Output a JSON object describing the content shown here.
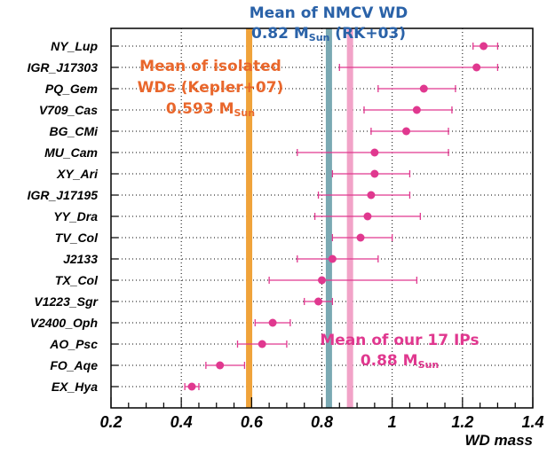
{
  "chart_data": {
    "type": "scatter",
    "title": "",
    "xlabel": "WD mass",
    "ylabel": "",
    "xlim": [
      0.2,
      1.4
    ],
    "x_ticks": [
      0.2,
      0.4,
      0.6,
      0.8,
      1,
      1.2,
      1.4
    ],
    "x_tick_labels": [
      "0.2",
      "0.4",
      "0.6",
      "0.8",
      "1",
      "1.2",
      "1.4"
    ],
    "grid": true,
    "categories": [
      "NY_Lup",
      "IGR_J17303",
      "PQ_Gem",
      "V709_Cas",
      "BG_CMi",
      "MU_Cam",
      "XY_Ari",
      "IGR_J17195",
      "YY_Dra",
      "TV_Col",
      "J2133",
      "TX_Col",
      "V1223_Sgr",
      "V2400_Oph",
      "AO_Psc",
      "FO_Aqe",
      "EX_Hya"
    ],
    "series": [
      {
        "values": [
          1.26,
          1.24,
          1.09,
          1.07,
          1.04,
          0.95,
          0.95,
          0.94,
          0.93,
          0.91,
          0.83,
          0.8,
          0.79,
          0.66,
          0.63,
          0.51,
          0.43
        ],
        "err_low": [
          1.23,
          0.85,
          0.96,
          0.92,
          0.94,
          0.73,
          0.83,
          0.79,
          0.78,
          0.83,
          0.73,
          0.65,
          0.75,
          0.61,
          0.56,
          0.47,
          0.41
        ],
        "err_high": [
          1.3,
          1.3,
          1.18,
          1.17,
          1.16,
          1.16,
          1.05,
          1.05,
          1.08,
          1.0,
          0.96,
          1.07,
          0.83,
          0.71,
          0.7,
          0.58,
          0.45
        ],
        "color": "#e0388f"
      }
    ],
    "reference_lines": [
      {
        "value": 0.593,
        "color": "#f0a33a",
        "label_lines": [
          "Mean of  isolated",
          "WDs (Kepler+07)"
        ],
        "value_text": "0.593 M",
        "subscript": "Sun",
        "suffix": "",
        "text_color": "#e9672c"
      },
      {
        "value": 0.82,
        "color": "#7aa9b3",
        "label_lines": [
          "Mean of NMCV WD"
        ],
        "value_text": "0.82 M",
        "subscript": "Sun",
        "suffix": " (RK+03)",
        "text_color": "#2a62a8"
      },
      {
        "value": 0.88,
        "color": "#f2a3c8",
        "label_lines": [
          "Mean of our 17 IPs"
        ],
        "value_text": "0.88 M",
        "subscript": "Sun",
        "suffix": "",
        "text_color": "#e0388f"
      }
    ]
  }
}
